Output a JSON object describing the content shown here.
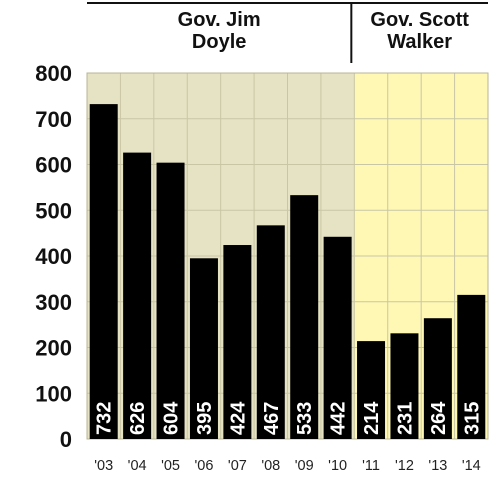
{
  "chart_data": {
    "type": "bar",
    "categories": [
      "'03",
      "'04",
      "'05",
      "'06",
      "'07",
      "'08",
      "'09",
      "'10",
      "'11",
      "'12",
      "'13",
      "'14"
    ],
    "values": [
      732,
      626,
      604,
      395,
      424,
      467,
      533,
      442,
      214,
      231,
      264,
      315
    ],
    "ylim": [
      0,
      800
    ],
    "yticks": [
      0,
      100,
      200,
      300,
      400,
      500,
      600,
      700,
      800
    ],
    "grid": true,
    "eras": [
      {
        "label_lines": [
          "Gov. Jim",
          "Doyle"
        ],
        "from": 0,
        "to": 7,
        "background": "#e6e3c4"
      },
      {
        "label_lines": [
          "Gov. Scott",
          "Walker"
        ],
        "from": 8,
        "to": 11,
        "background": "#fff8b5"
      }
    ],
    "bar_color": "#000000",
    "label_color": "#ffffff"
  }
}
